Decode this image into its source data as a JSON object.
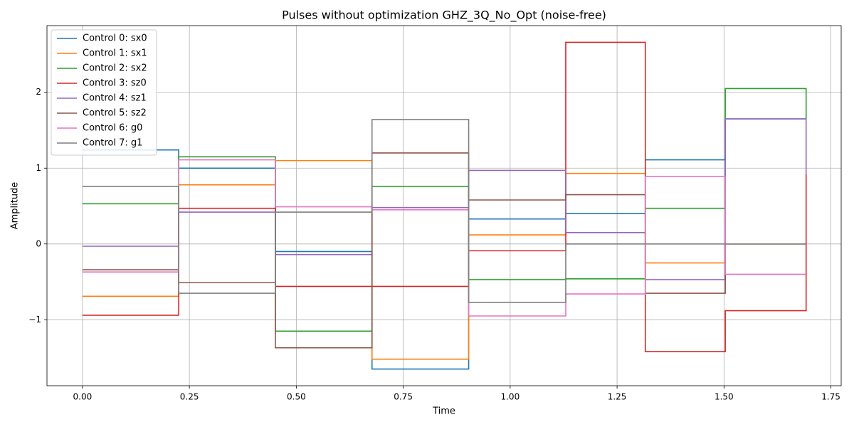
{
  "chart_data": {
    "type": "step",
    "title": "Pulses without optimization GHZ_3Q_No_Opt (noise-free)",
    "xlabel": "Time",
    "ylabel": "Amplitude",
    "x": [
      0,
      0.225,
      0.451,
      0.677,
      0.903,
      1.13,
      1.316,
      1.503,
      1.692
    ],
    "series": [
      {
        "name": "Control 0: sx0",
        "color": "#1f77b4",
        "values": [
          1.24,
          1.0,
          -0.1,
          -1.65,
          0.33,
          0.4,
          1.11,
          1.65,
          1.65
        ]
      },
      {
        "name": "Control 1: sx1",
        "color": "#ff7f0e",
        "values": [
          -0.69,
          0.78,
          1.1,
          -1.52,
          0.12,
          0.93,
          -0.25,
          0.0,
          0.0
        ]
      },
      {
        "name": "Control 2: sx2",
        "color": "#2ca02c",
        "values": [
          0.53,
          1.15,
          -1.15,
          0.76,
          -0.47,
          -0.46,
          0.47,
          2.05,
          1.65
        ]
      },
      {
        "name": "Control 3: sz0",
        "color": "#d62728",
        "values": [
          -0.94,
          0.47,
          -0.56,
          -0.56,
          -0.09,
          2.66,
          -1.42,
          -0.88,
          0.93
        ]
      },
      {
        "name": "Control 4: sz1",
        "color": "#9467bd",
        "values": [
          -0.03,
          0.42,
          -0.14,
          0.48,
          0.97,
          0.15,
          -0.47,
          1.65,
          0.93
        ]
      },
      {
        "name": "Control 5: sz2",
        "color": "#8c564b",
        "values": [
          -0.34,
          -0.51,
          -1.37,
          1.2,
          0.58,
          0.65,
          -0.65,
          0.0,
          0.0
        ]
      },
      {
        "name": "Control 6: g0",
        "color": "#e377c2",
        "values": [
          -0.37,
          1.11,
          0.49,
          0.45,
          -0.95,
          -0.66,
          0.89,
          -0.4,
          -0.4
        ]
      },
      {
        "name": "Control 7: g1",
        "color": "#7f7f7f",
        "values": [
          0.76,
          -0.65,
          0.42,
          1.64,
          -0.77,
          0.0,
          0.0,
          0.0,
          0.0
        ]
      }
    ],
    "xlim": [
      -0.083,
      1.774
    ],
    "ylim": [
      -1.87,
      2.88
    ],
    "xticks": [
      {
        "value": 0,
        "label": "0.00"
      },
      {
        "value": 0.25,
        "label": "0.25"
      },
      {
        "value": 0.5,
        "label": "0.50"
      },
      {
        "value": 0.75,
        "label": "0.75"
      },
      {
        "value": 1,
        "label": "1.00"
      },
      {
        "value": 1.25,
        "label": "1.25"
      },
      {
        "value": 1.5,
        "label": "1.50"
      },
      {
        "value": 1.75,
        "label": "1.75"
      }
    ],
    "yticks": [
      {
        "value": -1,
        "label": "−1"
      },
      0,
      1,
      2
    ],
    "grid": true,
    "legend": "upper left"
  }
}
